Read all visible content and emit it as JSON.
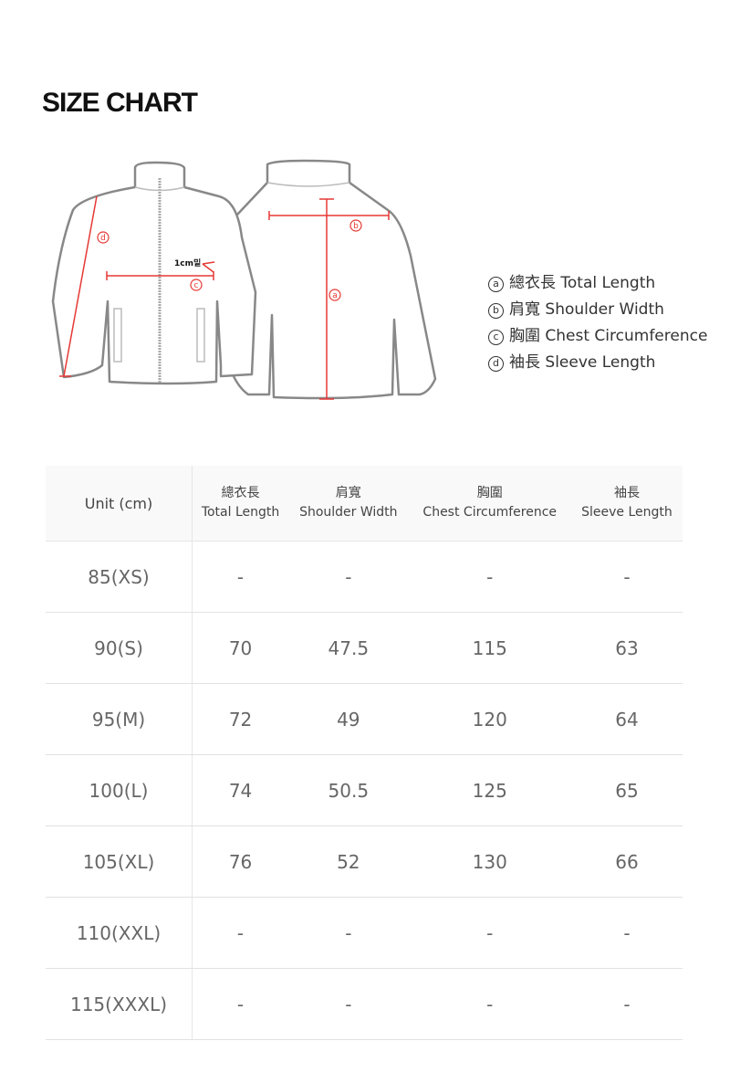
{
  "title": "SIZE CHART",
  "diagram": {
    "note": "1cm밑",
    "labels": {
      "a": "a",
      "b": "b",
      "c": "c",
      "d": "d"
    },
    "accent_color": "#e53935"
  },
  "legend": [
    {
      "mark": "a",
      "text": "總衣長 Total Length"
    },
    {
      "mark": "b",
      "text": "肩寬 Shoulder Width"
    },
    {
      "mark": "c",
      "text": "胸圍 Chest Circumference"
    },
    {
      "mark": "d",
      "text": "袖長 Sleeve Length"
    }
  ],
  "table": {
    "unit_label": "Unit (cm)",
    "columns": [
      {
        "zh": "總衣長",
        "en": "Total Length"
      },
      {
        "zh": "肩寬",
        "en": "Shoulder Width"
      },
      {
        "zh": "胸圍",
        "en": "Chest Circumference"
      },
      {
        "zh": "袖長",
        "en": "Sleeve Length"
      }
    ],
    "rows": [
      {
        "size": "85(XS)",
        "values": [
          "-",
          "-",
          "-",
          "-"
        ]
      },
      {
        "size": "90(S)",
        "values": [
          "70",
          "47.5",
          "115",
          "63"
        ]
      },
      {
        "size": "95(M)",
        "values": [
          "72",
          "49",
          "120",
          "64"
        ]
      },
      {
        "size": "100(L)",
        "values": [
          "74",
          "50.5",
          "125",
          "65"
        ]
      },
      {
        "size": "105(XL)",
        "values": [
          "76",
          "52",
          "130",
          "66"
        ]
      },
      {
        "size": "110(XXL)",
        "values": [
          "-",
          "-",
          "-",
          "-"
        ]
      },
      {
        "size": "115(XXXL)",
        "values": [
          "-",
          "-",
          "-",
          "-"
        ]
      }
    ]
  }
}
